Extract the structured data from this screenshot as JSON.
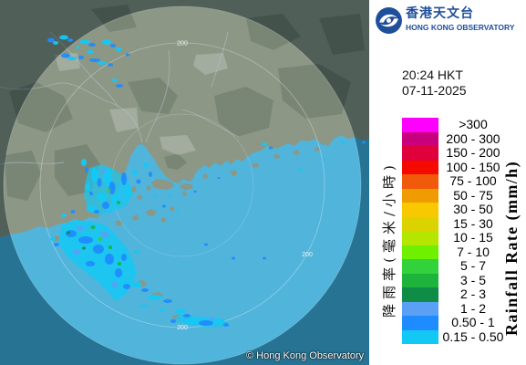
{
  "logo": {
    "icon": "hko-logo-icon",
    "name_zh": "香港天文台",
    "name_en": "HONG KONG OBSERVATORY",
    "color": "#1f4e9a"
  },
  "timestamp": {
    "time": "20:24 HKT",
    "date": "07-11-2025"
  },
  "legend": {
    "title_zh": "降雨率(毫米/小時)",
    "title_en": "Rainfall Rate (mm/h)",
    "items": [
      {
        "label": ">300",
        "color": "#ff00ff"
      },
      {
        "label": "200 - 300",
        "color": "#c8007d"
      },
      {
        "label": "150 - 200",
        "color": "#e0003c"
      },
      {
        "label": "100 - 150",
        "color": "#f50a00"
      },
      {
        "label": "75 - 100",
        "color": "#f05a0a"
      },
      {
        "label": "50 - 75",
        "color": "#f09b00"
      },
      {
        "label": "30 - 50",
        "color": "#f8c800"
      },
      {
        "label": "15 - 30",
        "color": "#dcd200"
      },
      {
        "label": "10 - 15",
        "color": "#b4e600"
      },
      {
        "label": "7 - 10",
        "color": "#6ef000"
      },
      {
        "label": "5 - 7",
        "color": "#32d23c"
      },
      {
        "label": "3 - 5",
        "color": "#1eb43c"
      },
      {
        "label": "2 - 3",
        "color": "#0f8c46"
      },
      {
        "label": "1 - 2",
        "color": "#5aa0f5"
      },
      {
        "label": "0.50 - 1",
        "color": "#1e8cff"
      },
      {
        "label": "0.15 - 0.50",
        "color": "#14c8f5"
      }
    ]
  },
  "map": {
    "range_ring_labels": [
      "200",
      "200",
      "200"
    ],
    "copyright": "© Hong Kong Observatory"
  }
}
